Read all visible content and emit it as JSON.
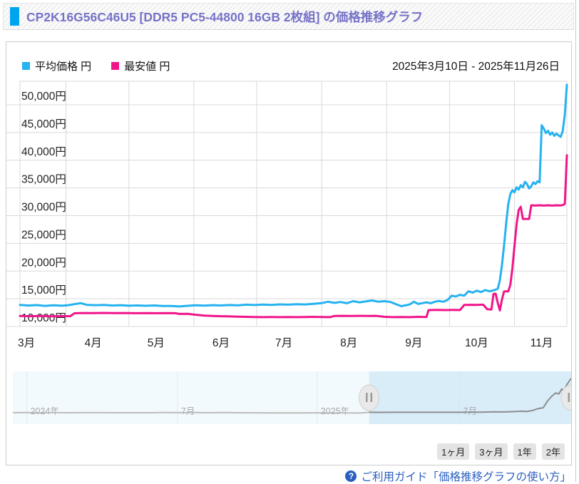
{
  "page": {
    "title": "CP2K16G56C46U5 [DDR5 PC5-44800 16GB 2枚組] の価格推移グラフ"
  },
  "legend": {
    "items": [
      {
        "label": "平均価格 円",
        "color": "#25b2f0"
      },
      {
        "label": "最安値 円",
        "color": "#f0158a"
      }
    ]
  },
  "date_range": "2025年3月10日 - 2025年11月26日",
  "chart_data": {
    "type": "line",
    "title": "CP2K16G56C46U5 [DDR5 PC5-44800 16GB 2枚組] の価格推移グラフ",
    "legend_position": "top-left",
    "grid": true,
    "x_unit": "days_from_2025-03-10",
    "x_range_days": [
      0,
      261
    ],
    "x_months": [
      {
        "label": "3月",
        "day": 0
      },
      {
        "label": "4月",
        "day": 22
      },
      {
        "label": "5月",
        "day": 52
      },
      {
        "label": "6月",
        "day": 83
      },
      {
        "label": "7月",
        "day": 113
      },
      {
        "label": "8月",
        "day": 144
      },
      {
        "label": "9月",
        "day": 175
      },
      {
        "label": "10月",
        "day": 205
      },
      {
        "label": "11月",
        "day": 236
      }
    ],
    "y_ticks": [
      10000,
      15000,
      20000,
      25000,
      30000,
      35000,
      40000,
      45000,
      50000
    ],
    "y_tick_suffix": "円",
    "ylim": [
      8700,
      55300
    ],
    "series": [
      {
        "name": "平均価格",
        "color": "#25b2f0",
        "points": [
          [
            0,
            13900
          ],
          [
            4,
            13780
          ],
          [
            8,
            13860
          ],
          [
            12,
            13720
          ],
          [
            16,
            13820
          ],
          [
            20,
            13740
          ],
          [
            23,
            13840
          ],
          [
            26,
            14020
          ],
          [
            29,
            14200
          ],
          [
            32,
            13900
          ],
          [
            36,
            13840
          ],
          [
            40,
            13880
          ],
          [
            44,
            13780
          ],
          [
            48,
            13840
          ],
          [
            52,
            13740
          ],
          [
            56,
            13800
          ],
          [
            60,
            13730
          ],
          [
            64,
            13790
          ],
          [
            68,
            13710
          ],
          [
            72,
            13690
          ],
          [
            76,
            13610
          ],
          [
            80,
            13730
          ],
          [
            84,
            13830
          ],
          [
            88,
            13770
          ],
          [
            92,
            13850
          ],
          [
            96,
            13790
          ],
          [
            100,
            13870
          ],
          [
            104,
            13810
          ],
          [
            108,
            13930
          ],
          [
            112,
            13870
          ],
          [
            116,
            13950
          ],
          [
            120,
            13890
          ],
          [
            124,
            13990
          ],
          [
            128,
            13930
          ],
          [
            132,
            14030
          ],
          [
            136,
            13970
          ],
          [
            140,
            14090
          ],
          [
            144,
            14220
          ],
          [
            147,
            14460
          ],
          [
            150,
            14260
          ],
          [
            153,
            14410
          ],
          [
            156,
            14190
          ],
          [
            159,
            14560
          ],
          [
            162,
            14360
          ],
          [
            165,
            14510
          ],
          [
            168,
            14690
          ],
          [
            171,
            14460
          ],
          [
            174,
            14560
          ],
          [
            177,
            14410
          ],
          [
            180,
            13930
          ],
          [
            182,
            13660
          ],
          [
            184,
            13810
          ],
          [
            186,
            13990
          ],
          [
            188,
            14460
          ],
          [
            190,
            14060
          ],
          [
            192,
            14210
          ],
          [
            194,
            14360
          ],
          [
            196,
            14190
          ],
          [
            198,
            14460
          ],
          [
            200,
            14610
          ],
          [
            202,
            14460
          ],
          [
            204,
            14760
          ],
          [
            206,
            15560
          ],
          [
            208,
            15410
          ],
          [
            210,
            15710
          ],
          [
            212,
            15560
          ],
          [
            214,
            16360
          ],
          [
            216,
            16110
          ],
          [
            218,
            16460
          ],
          [
            220,
            16210
          ],
          [
            222,
            16560
          ],
          [
            224,
            16360
          ],
          [
            226,
            16510
          ],
          [
            228,
            16810
          ],
          [
            229,
            18300
          ],
          [
            230,
            21000
          ],
          [
            231,
            24500
          ],
          [
            232,
            28500
          ],
          [
            233,
            32000
          ],
          [
            234,
            33900
          ],
          [
            235,
            34600
          ],
          [
            236,
            34200
          ],
          [
            237,
            35100
          ],
          [
            238,
            34700
          ],
          [
            239,
            35500
          ],
          [
            240,
            35100
          ],
          [
            241,
            36100
          ],
          [
            242,
            35700
          ],
          [
            243,
            34900
          ],
          [
            244,
            35300
          ],
          [
            245,
            36000
          ],
          [
            246,
            35700
          ],
          [
            247,
            36200
          ],
          [
            248,
            36000
          ],
          [
            249,
            46300
          ],
          [
            250,
            45700
          ],
          [
            251,
            44900
          ],
          [
            252,
            45300
          ],
          [
            253,
            44600
          ],
          [
            254,
            45000
          ],
          [
            255,
            44400
          ],
          [
            256,
            44800
          ],
          [
            257,
            44500
          ],
          [
            258,
            44200
          ],
          [
            259,
            45200
          ],
          [
            260,
            48200
          ],
          [
            261,
            53600
          ]
        ]
      },
      {
        "name": "最安値",
        "color": "#f0158a",
        "points": [
          [
            0,
            11900
          ],
          [
            5,
            11850
          ],
          [
            10,
            11890
          ],
          [
            15,
            11840
          ],
          [
            20,
            11880
          ],
          [
            24,
            11850
          ],
          [
            26,
            12380
          ],
          [
            30,
            12430
          ],
          [
            35,
            12400
          ],
          [
            40,
            12440
          ],
          [
            45,
            12400
          ],
          [
            50,
            12430
          ],
          [
            55,
            12390
          ],
          [
            60,
            12420
          ],
          [
            65,
            12390
          ],
          [
            70,
            12420
          ],
          [
            74,
            12390
          ],
          [
            76,
            12260
          ],
          [
            80,
            12280
          ],
          [
            84,
            12110
          ],
          [
            88,
            11960
          ],
          [
            92,
            11900
          ],
          [
            96,
            11850
          ],
          [
            100,
            11810
          ],
          [
            104,
            11770
          ],
          [
            108,
            11730
          ],
          [
            112,
            11700
          ],
          [
            116,
            11690
          ],
          [
            120,
            11710
          ],
          [
            124,
            11690
          ],
          [
            128,
            11710
          ],
          [
            132,
            11690
          ],
          [
            136,
            11710
          ],
          [
            140,
            11730
          ],
          [
            144,
            11710
          ],
          [
            148,
            11690
          ],
          [
            150,
            11890
          ],
          [
            154,
            11910
          ],
          [
            158,
            11890
          ],
          [
            162,
            11910
          ],
          [
            166,
            11890
          ],
          [
            170,
            11910
          ],
          [
            174,
            11730
          ],
          [
            178,
            11690
          ],
          [
            182,
            11710
          ],
          [
            186,
            11690
          ],
          [
            190,
            11730
          ],
          [
            194,
            11710
          ],
          [
            195,
            12960
          ],
          [
            199,
            12990
          ],
          [
            203,
            12960
          ],
          [
            207,
            12990
          ],
          [
            210,
            12960
          ],
          [
            212,
            13890
          ],
          [
            215,
            13910
          ],
          [
            218,
            13890
          ],
          [
            221,
            13930
          ],
          [
            223,
            13110
          ],
          [
            225,
            13060
          ],
          [
            226,
            15860
          ],
          [
            227,
            15910
          ],
          [
            228,
            14300
          ],
          [
            229,
            12900
          ],
          [
            230,
            14800
          ],
          [
            231,
            16300
          ],
          [
            232,
            16350
          ],
          [
            233,
            16310
          ],
          [
            234,
            17500
          ],
          [
            235,
            20500
          ],
          [
            236,
            24500
          ],
          [
            237,
            28500
          ],
          [
            238,
            31000
          ],
          [
            239,
            31600
          ],
          [
            240,
            29400
          ],
          [
            241,
            29420
          ],
          [
            242,
            29380
          ],
          [
            243,
            29420
          ],
          [
            244,
            31860
          ],
          [
            246,
            31810
          ],
          [
            248,
            31860
          ],
          [
            250,
            31810
          ],
          [
            252,
            31860
          ],
          [
            254,
            31810
          ],
          [
            256,
            31860
          ],
          [
            258,
            31830
          ],
          [
            259,
            31900
          ],
          [
            260,
            32100
          ],
          [
            261,
            40900
          ]
        ]
      }
    ]
  },
  "navigator": {
    "axis_labels": [
      {
        "label": "2024年",
        "pos": 0.025
      },
      {
        "label": "7月",
        "pos": 0.295
      },
      {
        "label": "2025年",
        "pos": 0.545
      },
      {
        "label": "7月",
        "pos": 0.8
      }
    ],
    "selection": {
      "start": 0.638,
      "end": 1.0
    },
    "series_color_unselected": "#bcbcbc",
    "series_color_selected": "#8d8d8d",
    "value_max": 56000,
    "series": [
      [
        0,
        11400
      ],
      [
        0.02,
        11650
      ],
      [
        0.04,
        11350
      ],
      [
        0.07,
        11450
      ],
      [
        0.1,
        11380
      ],
      [
        0.13,
        11420
      ],
      [
        0.16,
        11500
      ],
      [
        0.19,
        11350
      ],
      [
        0.22,
        11400
      ],
      [
        0.25,
        11350
      ],
      [
        0.27,
        11700
      ],
      [
        0.29,
        11500
      ],
      [
        0.31,
        11450
      ],
      [
        0.33,
        11520
      ],
      [
        0.35,
        11400
      ],
      [
        0.38,
        11550
      ],
      [
        0.4,
        11350
      ],
      [
        0.43,
        11250
      ],
      [
        0.46,
        11150
      ],
      [
        0.49,
        11100
      ],
      [
        0.52,
        11180
      ],
      [
        0.55,
        11250
      ],
      [
        0.58,
        11120
      ],
      [
        0.6,
        11080
      ],
      [
        0.62,
        11050
      ],
      [
        0.638,
        11900
      ],
      [
        0.66,
        11850
      ],
      [
        0.68,
        11900
      ],
      [
        0.7,
        11860
      ],
      [
        0.72,
        11900
      ],
      [
        0.74,
        11860
      ],
      [
        0.76,
        11900
      ],
      [
        0.78,
        11940
      ],
      [
        0.8,
        11900
      ],
      [
        0.82,
        11960
      ],
      [
        0.84,
        12050
      ],
      [
        0.86,
        12400
      ],
      [
        0.88,
        12300
      ],
      [
        0.895,
        12700
      ],
      [
        0.91,
        13200
      ],
      [
        0.92,
        12900
      ],
      [
        0.93,
        13900
      ],
      [
        0.94,
        16300
      ],
      [
        0.95,
        17500
      ],
      [
        0.958,
        26000
      ],
      [
        0.965,
        31500
      ],
      [
        0.972,
        35500
      ],
      [
        0.978,
        34500
      ],
      [
        0.983,
        40500
      ],
      [
        0.987,
        38500
      ],
      [
        0.992,
        45500
      ],
      [
        1,
        53600
      ]
    ]
  },
  "range_buttons": [
    {
      "label": "1ヶ月"
    },
    {
      "label": "3ヶ月"
    },
    {
      "label": "1年"
    },
    {
      "label": "2年"
    }
  ],
  "footer": {
    "icon": "?",
    "link": "ご利用ガイド「価格推移グラフの使い方」"
  }
}
